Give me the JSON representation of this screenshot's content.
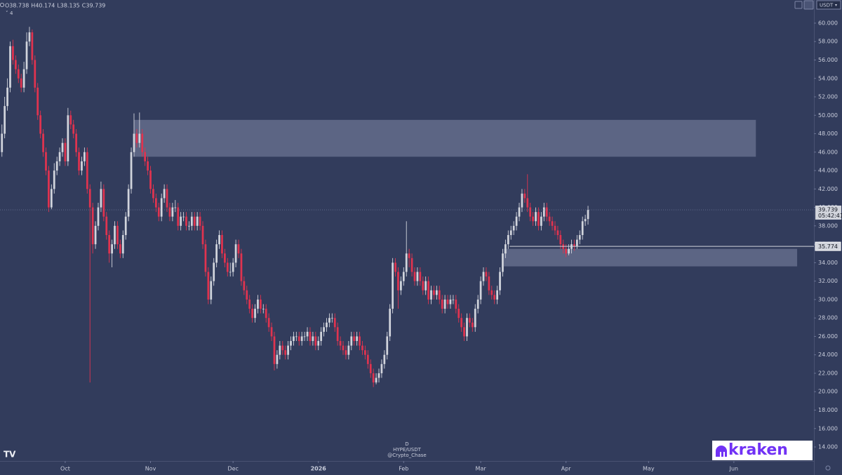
{
  "chart_data": {
    "type": "candlestick",
    "symbol_info": [
      "D",
      "HYPE/USDT",
      "@Crypto_Chase"
    ],
    "ohlc_labels": [
      "O",
      "H",
      "L",
      "C"
    ],
    "indicator_count": "4",
    "currency": "USDT",
    "countdown": "05:42:41",
    "brand": "kraken",
    "colors": {
      "up": "#d1d4dc",
      "down": "#e0334f",
      "zone": "#6b7391"
    },
    "xlim": [
      -23.7,
      272.1
    ],
    "ylim": [
      12.48,
      62.51
    ],
    "xticks": [
      {
        "value": 0,
        "label": "Oct"
      },
      {
        "value": 31,
        "label": "Nov"
      },
      {
        "value": 61,
        "label": "Dec"
      },
      {
        "value": 92,
        "label": "2026"
      },
      {
        "value": 123,
        "label": "Feb"
      },
      {
        "value": 151,
        "label": "Mar"
      },
      {
        "value": 182,
        "label": "Apr"
      },
      {
        "value": 212,
        "label": "May"
      },
      {
        "value": 243,
        "label": "Jun"
      }
    ],
    "yticks": [
      {
        "value": 14,
        "label": "14.000"
      },
      {
        "value": 16,
        "label": "16.000"
      },
      {
        "value": 18,
        "label": "18.000"
      },
      {
        "value": 20,
        "label": "20.000"
      },
      {
        "value": 22,
        "label": "22.000"
      },
      {
        "value": 24,
        "label": "24.000"
      },
      {
        "value": 26,
        "label": "26.000"
      },
      {
        "value": 28,
        "label": "28.000"
      },
      {
        "value": 30,
        "label": "30.000"
      },
      {
        "value": 32,
        "label": "32.000"
      },
      {
        "value": 34,
        "label": "34.000"
      },
      {
        "value": 36,
        "label": "36.000"
      },
      {
        "value": 38,
        "label": "38.000"
      },
      {
        "value": 40,
        "label": "40.000"
      },
      {
        "value": 42,
        "label": "42.000"
      },
      {
        "value": 44,
        "label": "44.000"
      },
      {
        "value": 46,
        "label": "46.000"
      },
      {
        "value": 48,
        "label": "48.000"
      },
      {
        "value": 50,
        "label": "50.000"
      },
      {
        "value": 52,
        "label": "52.000"
      },
      {
        "value": 54,
        "label": "54.000"
      },
      {
        "value": 56,
        "label": "56.000"
      },
      {
        "value": 58,
        "label": "58.000"
      },
      {
        "value": 60,
        "label": "60.000"
      }
    ],
    "zones": [
      {
        "x": [
          25,
          251
        ],
        "y": [
          45.5,
          49.5
        ]
      },
      {
        "x": [
          159.4,
          266
        ],
        "y": [
          33.6,
          35.5
        ]
      }
    ],
    "hline": {
      "value": 35.774,
      "x_start": 161.5
    },
    "x": [
      -23,
      -22,
      -21,
      -20,
      -19,
      -18,
      -17,
      -16,
      -15,
      -14,
      -13,
      -12,
      -11,
      -10,
      -9,
      -8,
      -7,
      -6,
      -5,
      -4,
      -3,
      -2,
      -1,
      0,
      1,
      2,
      3,
      4,
      5,
      6,
      7,
      8,
      9,
      10,
      11,
      12,
      13,
      14,
      15,
      16,
      17,
      18,
      19,
      20,
      21,
      22,
      23,
      24,
      25,
      26,
      27,
      28,
      29,
      30,
      31,
      32,
      33,
      34,
      35,
      36,
      37,
      38,
      39,
      40,
      41,
      42,
      43,
      44,
      45,
      46,
      47,
      48,
      49,
      50,
      51,
      52,
      53,
      54,
      55,
      56,
      57,
      58,
      59,
      60,
      61,
      62,
      63,
      64,
      65,
      66,
      67,
      68,
      69,
      70,
      71,
      72,
      73,
      74,
      75,
      76,
      77,
      78,
      79,
      80,
      81,
      82,
      83,
      84,
      85,
      86,
      87,
      88,
      89,
      90,
      91,
      92,
      93,
      94,
      95,
      96,
      97,
      98,
      99,
      100,
      101,
      102,
      103,
      104,
      105,
      106,
      107,
      108,
      109,
      110,
      111,
      112,
      113,
      114,
      115,
      116,
      117,
      118,
      119,
      120,
      121,
      122,
      123,
      124,
      125,
      126,
      127,
      128,
      129,
      130,
      131,
      132,
      133,
      134,
      135,
      136,
      137,
      138,
      139,
      140,
      141,
      142,
      143,
      144,
      145,
      146,
      147,
      148,
      149,
      150,
      151,
      152,
      153,
      154,
      155,
      156,
      157,
      158,
      159,
      160,
      161,
      162,
      163,
      164,
      165,
      166,
      167,
      168,
      169,
      170,
      171,
      172,
      173,
      174,
      175,
      176,
      177,
      178,
      179,
      180,
      181,
      182,
      183,
      184,
      185,
      186,
      187,
      188,
      189,
      190
    ],
    "open": [
      46,
      48,
      51,
      53,
      57.5,
      56,
      55,
      54,
      53,
      55,
      58,
      59,
      56,
      53,
      50,
      48,
      46,
      44,
      40,
      42,
      44,
      45,
      46,
      47,
      45,
      50,
      49,
      48,
      46,
      44,
      45,
      46,
      42,
      40,
      36,
      38,
      40,
      42,
      39,
      37,
      35,
      36,
      38,
      36,
      35,
      37,
      39,
      42,
      46,
      48,
      47,
      48,
      46,
      45,
      44,
      42,
      41,
      40,
      39,
      41,
      42,
      40,
      39,
      40,
      40,
      38,
      39,
      39,
      38,
      38,
      39,
      38,
      39,
      38,
      36,
      33,
      30,
      32,
      34,
      36,
      37,
      35,
      34,
      33,
      33,
      34,
      36,
      35,
      32,
      31,
      30,
      29,
      28,
      29,
      30,
      29,
      29,
      28,
      27,
      26,
      23,
      24,
      25,
      24.5,
      24,
      25,
      25.5,
      26,
      26,
      25.5,
      26,
      26,
      26.5,
      25.5,
      26,
      25,
      25.5,
      26.5,
      27,
      27.5,
      28,
      28,
      27,
      25.5,
      25,
      24.5,
      24,
      25,
      26,
      25.5,
      26,
      25,
      24.5,
      24,
      23,
      22,
      21,
      21.5,
      22,
      23,
      24,
      26,
      29,
      34,
      33,
      31,
      32,
      33,
      35,
      34.5,
      33,
      32,
      33,
      32,
      31,
      32,
      30,
      31,
      30.5,
      31,
      30,
      29,
      30,
      29.5,
      30,
      30,
      29,
      28,
      27,
      26,
      28,
      27.5,
      27,
      29,
      30,
      32,
      33,
      32.5,
      31,
      30.5,
      30,
      31,
      33,
      35,
      36,
      37,
      37.5,
      38,
      39,
      40,
      41.5,
      41,
      40,
      39,
      38.5,
      39.5,
      38,
      39,
      40,
      39,
      38.5,
      38,
      37.5,
      37,
      36,
      35.5,
      35,
      35.5,
      36,
      35.8,
      36.5,
      37,
      38.5,
      38.738
    ],
    "high": [
      49,
      52,
      54,
      58,
      58.2,
      56.5,
      55.5,
      54.5,
      55.8,
      59,
      59.6,
      59.3,
      56.5,
      53.5,
      50.5,
      48.5,
      46.5,
      44.5,
      42.5,
      44.8,
      45.5,
      46.5,
      47.5,
      47.5,
      50.8,
      50.5,
      49.5,
      48.5,
      46.5,
      45.5,
      46.5,
      46.5,
      42.5,
      40.5,
      38.5,
      40.5,
      42.8,
      42.5,
      39.5,
      37.5,
      36.5,
      38.5,
      38.5,
      36.5,
      37.5,
      39.5,
      42.5,
      46.5,
      50.2,
      48.5,
      50.3,
      48.5,
      46.5,
      45.5,
      44.5,
      42.5,
      41.5,
      40.5,
      41.5,
      42.5,
      42.5,
      40.5,
      40.5,
      40.8,
      40.5,
      39.5,
      39.5,
      39.5,
      38.5,
      39.5,
      39.5,
      39.5,
      39.5,
      38.5,
      36.5,
      33.5,
      32.5,
      34.5,
      36.5,
      37.5,
      37.5,
      35.5,
      34.5,
      34,
      34.5,
      36.5,
      36.5,
      35.5,
      32.5,
      31.5,
      30.5,
      29.5,
      29.5,
      30.5,
      30.5,
      29.5,
      29.5,
      28.5,
      27.5,
      26.5,
      24.5,
      25.5,
      25.5,
      25,
      25.5,
      26,
      26.5,
      26.5,
      26.5,
      26.5,
      26.5,
      27,
      27,
      26.5,
      26.5,
      26,
      27,
      27.5,
      28,
      28.5,
      28.5,
      28.5,
      27.5,
      26,
      25.5,
      25,
      25.5,
      26.5,
      26.5,
      26.5,
      26.5,
      25.5,
      25,
      24.5,
      23.5,
      22.5,
      22,
      22.5,
      23.5,
      24.5,
      26.5,
      29.5,
      34.5,
      34.5,
      33.5,
      32.5,
      33.5,
      38.5,
      35.5,
      35,
      33.5,
      33.5,
      33.5,
      32.5,
      32.5,
      32.5,
      31.5,
      31.5,
      31.5,
      31.5,
      30.5,
      30.5,
      30.5,
      30.5,
      30.5,
      30.5,
      29.5,
      28.5,
      27.5,
      28.5,
      28.5,
      28,
      29.5,
      30.5,
      32.5,
      33.5,
      33.5,
      33,
      31.5,
      31,
      31.5,
      33.5,
      35.5,
      36.5,
      37.5,
      38,
      38.5,
      39.5,
      40.5,
      42,
      42,
      43.6,
      40.5,
      39.5,
      40,
      40,
      39.5,
      40.5,
      40.5,
      39.5,
      39,
      38.5,
      38,
      37.5,
      36.5,
      36,
      36,
      36.5,
      36.5,
      37,
      37.5,
      39,
      39.2,
      40.174
    ],
    "low": [
      45.5,
      47.5,
      50.5,
      52.5,
      55.5,
      54.5,
      53.5,
      52.5,
      52.5,
      54.5,
      57.5,
      55.5,
      52.5,
      49.5,
      47.5,
      45.5,
      43.5,
      39.5,
      39.8,
      41.5,
      43.5,
      44.5,
      45.5,
      44.5,
      44.5,
      48.5,
      47.5,
      45.5,
      43.5,
      43.5,
      44.5,
      41.5,
      21,
      35,
      35.5,
      37.5,
      39.5,
      38.5,
      36.5,
      34,
      33.5,
      35.5,
      35.5,
      34.5,
      34.5,
      36.5,
      38.5,
      41.5,
      45.5,
      46.5,
      46.5,
      45.5,
      44.5,
      43.5,
      41.5,
      40.5,
      39.5,
      38.5,
      38.5,
      40.5,
      39.5,
      38.5,
      38.5,
      39.5,
      37.5,
      37.5,
      38.5,
      37.5,
      37.5,
      37.5,
      37.5,
      37.5,
      37.5,
      35.5,
      32.5,
      29.5,
      29.5,
      31.5,
      33.5,
      35.5,
      34.5,
      33.5,
      32.5,
      32.5,
      32.5,
      33.5,
      34.5,
      31.5,
      30.5,
      29.5,
      28.5,
      27.5,
      27.5,
      28.5,
      28.5,
      28.5,
      27.5,
      26.5,
      25.5,
      22.3,
      22.5,
      23.5,
      24,
      23.5,
      23.5,
      24.5,
      25,
      25.5,
      25,
      25,
      25.5,
      25.5,
      25,
      25,
      24.5,
      24.5,
      25,
      26,
      26.5,
      27,
      27.5,
      26.5,
      25,
      24.5,
      24,
      23.5,
      23.5,
      24.5,
      25,
      25,
      24.5,
      24,
      23.5,
      22.5,
      21.5,
      20.5,
      20.8,
      21,
      21.5,
      22.5,
      23.5,
      25.5,
      28.5,
      32.5,
      29,
      30.5,
      31.5,
      32.5,
      33.5,
      32.5,
      31.5,
      31.5,
      31.5,
      30.5,
      30.5,
      29.5,
      29.5,
      30,
      30,
      29.5,
      28.5,
      28.5,
      29,
      29,
      29.5,
      28.5,
      27.5,
      26.5,
      25.5,
      25.5,
      27,
      26.5,
      26.5,
      28.5,
      29.5,
      31.5,
      32,
      30.5,
      30,
      29.5,
      29.5,
      30.5,
      32.5,
      34.5,
      35.5,
      36.5,
      37,
      37.5,
      38.5,
      39.5,
      40.5,
      39.5,
      38.5,
      38,
      38,
      37.5,
      37.5,
      38.5,
      38.5,
      38,
      37.5,
      37,
      36.5,
      35.5,
      35,
      34.6,
      34.8,
      35,
      35.3,
      35.5,
      36,
      36.5,
      38,
      38.135
    ],
    "close": [
      48,
      51,
      53,
      57.5,
      56,
      55,
      54,
      53,
      55,
      58,
      59,
      56,
      53,
      50,
      48,
      46,
      44,
      40,
      42,
      44,
      45,
      46,
      47,
      45,
      50,
      49,
      48,
      46,
      44,
      45,
      46,
      42,
      40,
      36,
      38,
      40,
      42,
      39,
      37,
      35,
      36,
      38,
      36,
      35,
      37,
      39,
      42,
      46,
      48,
      47,
      48,
      46,
      45,
      44,
      42,
      41,
      40,
      39,
      41,
      42,
      40,
      39,
      40,
      40,
      38,
      39,
      39,
      38,
      38,
      39,
      38,
      39,
      38,
      36,
      33,
      30,
      32,
      34,
      36,
      37,
      35,
      34,
      33,
      33,
      34,
      36,
      35,
      32,
      31,
      30,
      29,
      28,
      29,
      30,
      29,
      29,
      28,
      27,
      26,
      23,
      24,
      25,
      24.5,
      24,
      25,
      25.5,
      26,
      26,
      25.5,
      26,
      26,
      26.5,
      25.5,
      26,
      25,
      25.5,
      26.5,
      27,
      27.5,
      28,
      28,
      27,
      25.5,
      25,
      24.5,
      24,
      25,
      26,
      25.5,
      26,
      25,
      24.5,
      24,
      23,
      22,
      21,
      21.5,
      22,
      23,
      24,
      26,
      29,
      34,
      33,
      31,
      32,
      33,
      35,
      34.5,
      33,
      32,
      33,
      32,
      31,
      32,
      30,
      31,
      30.5,
      31,
      30,
      29,
      30,
      29.5,
      30,
      30,
      29,
      28,
      27,
      26,
      28,
      27.5,
      27,
      29,
      30,
      32,
      33,
      32.5,
      31,
      30.5,
      30,
      31,
      33,
      35,
      36,
      37,
      37.5,
      38,
      39,
      40,
      41.5,
      41,
      40,
      39,
      38.5,
      39.5,
      38,
      39,
      40,
      39,
      38.5,
      38,
      37.5,
      37,
      36,
      35.5,
      35,
      35.5,
      36,
      35.8,
      36.5,
      37,
      38.5,
      38.738,
      39.739
    ]
  }
}
